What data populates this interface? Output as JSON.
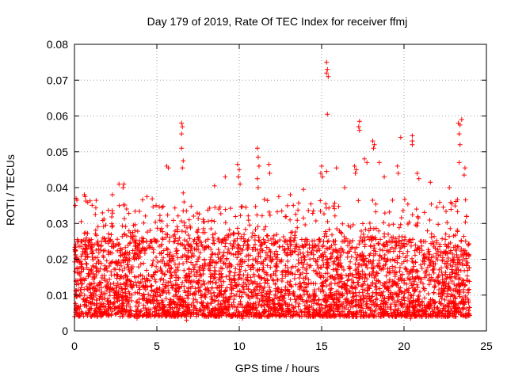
{
  "chart_data": {
    "type": "scatter",
    "title": "Day 179 of 2019, Rate Of TEC Index for receiver ffmj",
    "xlabel": "GPS time / hours",
    "ylabel": "ROTI / TECUs",
    "xlim": [
      0,
      25
    ],
    "ylim": [
      0,
      0.08
    ],
    "xticks": [
      0,
      5,
      10,
      15,
      20,
      25
    ],
    "xtick_labels": [
      "0",
      "5",
      "10",
      "15",
      "20",
      "25"
    ],
    "yticks": [
      0,
      0.01,
      0.02,
      0.03,
      0.04,
      0.05,
      0.06,
      0.07,
      0.08
    ],
    "ytick_labels": [
      "0",
      "0.01",
      "0.02",
      "0.03",
      "0.04",
      "0.05",
      "0.06",
      "0.07",
      "0.08"
    ],
    "grid": true,
    "marker": "+",
    "color": "#ff0000",
    "data_x_range": [
      0,
      24
    ],
    "dense_band": [
      0.004,
      0.025
    ],
    "series": [
      {
        "name": "ROTI",
        "notable_points": [
          {
            "x": 15.3,
            "y": 0.075
          },
          {
            "x": 15.35,
            "y": 0.073
          },
          {
            "x": 15.3,
            "y": 0.072
          },
          {
            "x": 15.4,
            "y": 0.071
          },
          {
            "x": 15.35,
            "y": 0.0605
          },
          {
            "x": 6.5,
            "y": 0.058
          },
          {
            "x": 6.55,
            "y": 0.057
          },
          {
            "x": 6.5,
            "y": 0.055
          },
          {
            "x": 6.5,
            "y": 0.051
          },
          {
            "x": 6.6,
            "y": 0.0475
          },
          {
            "x": 6.55,
            "y": 0.0455
          },
          {
            "x": 23.5,
            "y": 0.059
          },
          {
            "x": 23.3,
            "y": 0.058
          },
          {
            "x": 23.4,
            "y": 0.0575
          },
          {
            "x": 23.35,
            "y": 0.055
          },
          {
            "x": 23.4,
            "y": 0.052
          },
          {
            "x": 23.35,
            "y": 0.047
          },
          {
            "x": 17.3,
            "y": 0.0585
          },
          {
            "x": 17.25,
            "y": 0.057
          },
          {
            "x": 17.3,
            "y": 0.056
          },
          {
            "x": 18.1,
            "y": 0.053
          },
          {
            "x": 18.2,
            "y": 0.052
          },
          {
            "x": 18.15,
            "y": 0.051
          },
          {
            "x": 19.8,
            "y": 0.054
          },
          {
            "x": 20.5,
            "y": 0.0545
          },
          {
            "x": 20.5,
            "y": 0.053
          },
          {
            "x": 20.5,
            "y": 0.052
          },
          {
            "x": 11.1,
            "y": 0.051
          },
          {
            "x": 11.15,
            "y": 0.0485
          },
          {
            "x": 11.2,
            "y": 0.046
          },
          {
            "x": 11.1,
            "y": 0.0425
          },
          {
            "x": 11.15,
            "y": 0.04
          },
          {
            "x": 9.9,
            "y": 0.0465
          },
          {
            "x": 10.0,
            "y": 0.045
          },
          {
            "x": 9.95,
            "y": 0.043
          },
          {
            "x": 10.05,
            "y": 0.041
          },
          {
            "x": 11.8,
            "y": 0.0465
          },
          {
            "x": 11.85,
            "y": 0.044
          },
          {
            "x": 15.9,
            "y": 0.0455
          },
          {
            "x": 15.0,
            "y": 0.046
          },
          {
            "x": 14.95,
            "y": 0.044
          },
          {
            "x": 15.05,
            "y": 0.043
          },
          {
            "x": 15.3,
            "y": 0.0445
          },
          {
            "x": 17.0,
            "y": 0.046
          },
          {
            "x": 17.1,
            "y": 0.045
          },
          {
            "x": 17.05,
            "y": 0.044
          },
          {
            "x": 17.6,
            "y": 0.048
          },
          {
            "x": 17.75,
            "y": 0.047
          },
          {
            "x": 18.5,
            "y": 0.047
          },
          {
            "x": 19.6,
            "y": 0.046
          },
          {
            "x": 19.65,
            "y": 0.044
          },
          {
            "x": 20.8,
            "y": 0.044
          },
          {
            "x": 20.9,
            "y": 0.0425
          },
          {
            "x": 5.6,
            "y": 0.046
          },
          {
            "x": 5.7,
            "y": 0.0455
          },
          {
            "x": 3.0,
            "y": 0.041
          },
          {
            "x": 2.95,
            "y": 0.04
          },
          {
            "x": 2.7,
            "y": 0.041
          },
          {
            "x": 2.3,
            "y": 0.038
          },
          {
            "x": 0.1,
            "y": 0.037
          },
          {
            "x": 0.15,
            "y": 0.0365
          },
          {
            "x": 0.05,
            "y": 0.035
          },
          {
            "x": 0.6,
            "y": 0.038
          },
          {
            "x": 0.65,
            "y": 0.0375
          },
          {
            "x": 4.4,
            "y": 0.0375
          },
          {
            "x": 8.5,
            "y": 0.0405
          },
          {
            "x": 9.15,
            "y": 0.043
          },
          {
            "x": 12.4,
            "y": 0.0375
          },
          {
            "x": 13.1,
            "y": 0.038
          },
          {
            "x": 13.9,
            "y": 0.0395
          },
          {
            "x": 16.4,
            "y": 0.04
          },
          {
            "x": 18.8,
            "y": 0.043
          },
          {
            "x": 21.6,
            "y": 0.0415
          },
          {
            "x": 22.75,
            "y": 0.04
          },
          {
            "x": 23.7,
            "y": 0.0455
          },
          {
            "x": 23.65,
            "y": 0.0435
          },
          {
            "x": 6.6,
            "y": 0.0385
          },
          {
            "x": 6.65,
            "y": 0.036
          },
          {
            "x": 6.6,
            "y": 0.0335
          },
          {
            "x": 14.5,
            "y": 0.0335
          },
          {
            "x": 19.3,
            "y": 0.0365
          },
          {
            "x": 22.0,
            "y": 0.0345
          },
          {
            "x": 6.8,
            "y": 0.003
          },
          {
            "x": 20.4,
            "y": 0.0035
          },
          {
            "x": 3.8,
            "y": 0.0035
          },
          {
            "x": 10.2,
            "y": 0.0035
          },
          {
            "x": 21.5,
            "y": 0.004
          }
        ]
      }
    ]
  }
}
